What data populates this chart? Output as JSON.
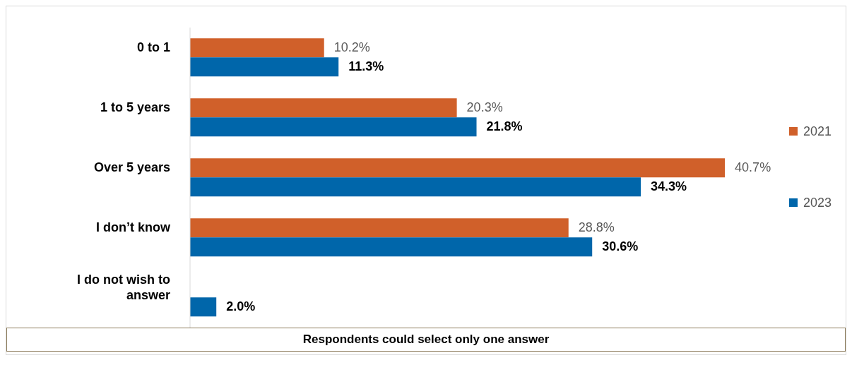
{
  "chart_data": {
    "type": "bar",
    "orientation": "horizontal",
    "categories": [
      "0 to 1",
      "1 to 5 years",
      "Over 5 years",
      "I don’t know",
      "I do not wish to answer"
    ],
    "series": [
      {
        "name": "2021",
        "color": "#d0602a",
        "values": [
          10.2,
          20.3,
          40.7,
          28.8,
          null
        ],
        "value_labels": [
          "10.2%",
          "20.3%",
          "40.7%",
          "28.8%",
          null
        ]
      },
      {
        "name": "2023",
        "color": "#0066aa",
        "values": [
          11.3,
          21.8,
          34.3,
          30.6,
          2.0
        ],
        "value_labels": [
          "11.3%",
          "21.8%",
          "34.3%",
          "30.6%",
          "2.0%"
        ]
      }
    ],
    "legend": "right",
    "annotations": [
      "Respondents could select only one answer"
    ]
  }
}
